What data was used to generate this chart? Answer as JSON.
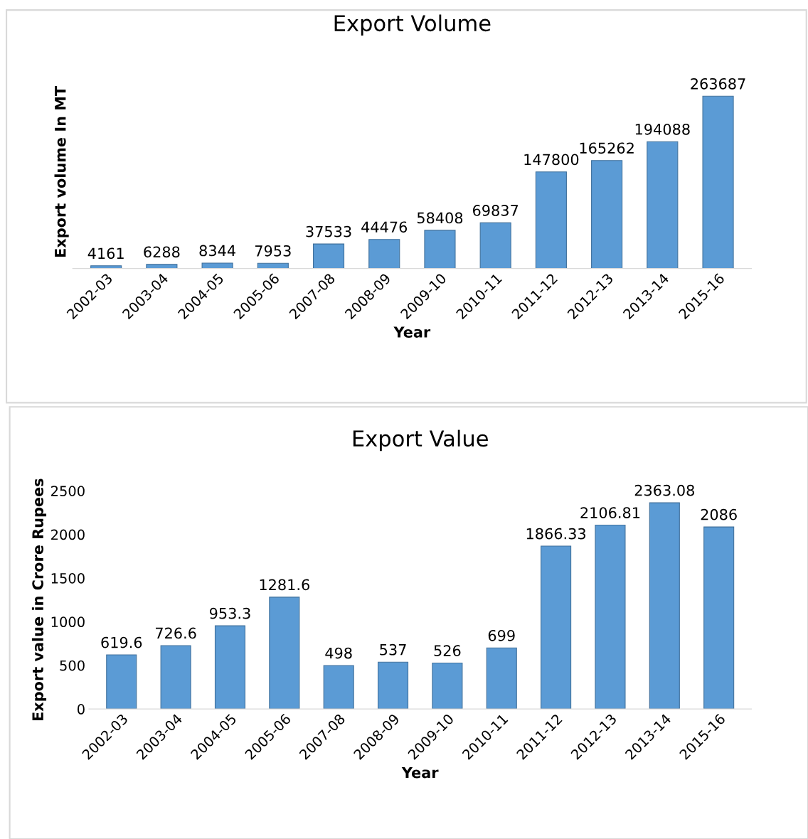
{
  "chart_data": [
    {
      "type": "bar",
      "title": "Export Volume",
      "xlabel": "Year",
      "ylabel": "Export volume In MT",
      "categories": [
        "2002-03",
        "2003-04",
        "2004-05",
        "2005-06",
        "2007-08",
        "2008-09",
        "2009-10",
        "2010-11",
        "2011-12",
        "2012-13",
        "2013-14",
        "2015-16"
      ],
      "values": [
        4161,
        6288,
        8344,
        7953,
        37533,
        44476,
        58408,
        69837,
        147800,
        165262,
        194088,
        263687
      ],
      "color": "#5b9bd5",
      "data_labels": true,
      "tick_labels": "x",
      "grid": false
    },
    {
      "type": "bar",
      "title": "Export Value",
      "xlabel": "Year",
      "ylabel": "Export value in Crore Rupees",
      "categories": [
        "2002-03",
        "2003-04",
        "2004-05",
        "2005-06",
        "2007-08",
        "2008-09",
        "2009-10",
        "2010-11",
        "2011-12",
        "2012-13",
        "2013-14",
        "2015-16"
      ],
      "values": [
        619.6,
        726.6,
        953.3,
        1281.6,
        498,
        537,
        526,
        699,
        1866.33,
        2106.81,
        2363.08,
        2086
      ],
      "color": "#5b9bd5",
      "data_labels": true,
      "ylim": [
        0,
        2500
      ],
      "yticks": [
        0,
        500,
        1000,
        1500,
        2000,
        2500
      ],
      "grid": false
    }
  ]
}
